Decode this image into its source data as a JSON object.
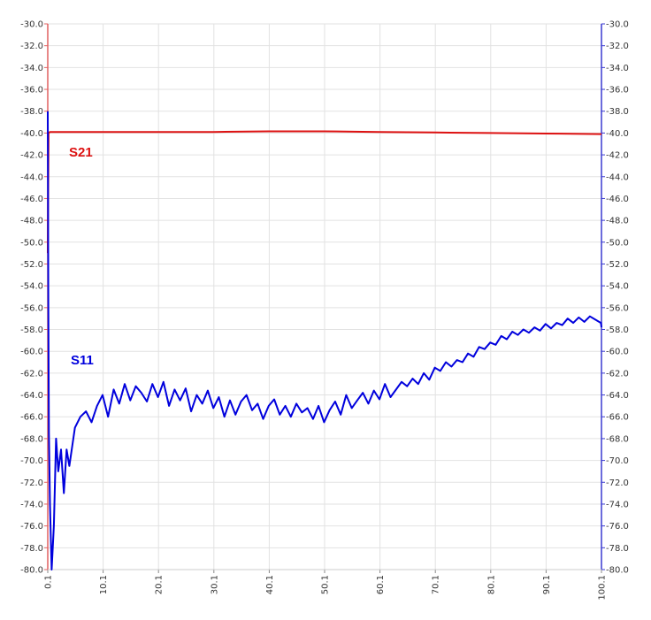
{
  "chart_data": {
    "type": "line",
    "title": "",
    "xlabel": "",
    "ylabel_left": "",
    "ylabel_right": "",
    "xlim": [
      0.1,
      100.1
    ],
    "ylim": [
      -80.0,
      -30.0
    ],
    "x_ticks": [
      "0.1",
      "10.1",
      "20.1",
      "30.1",
      "40.1",
      "50.1",
      "60.1",
      "70.1",
      "80.1",
      "90.1",
      "100.1"
    ],
    "y_ticks": [
      "-30.0",
      "-32.0",
      "-34.0",
      "-36.0",
      "-38.0",
      "-40.0",
      "-42.0",
      "-44.0",
      "-46.0",
      "-48.0",
      "-50.0",
      "-52.0",
      "-54.0",
      "-56.0",
      "-58.0",
      "-60.0",
      "-62.0",
      "-64.0",
      "-66.0",
      "-68.0",
      "-70.0",
      "-72.0",
      "-74.0",
      "-76.0",
      "-78.0",
      "-80.0"
    ],
    "grid": true,
    "left_axis_color": "#e06060",
    "right_axis_color": "#3a3ad0",
    "series": [
      {
        "name": "S21",
        "color": "#dd1111",
        "x": [
          0.1,
          0.25,
          0.5,
          1,
          5,
          10,
          20,
          30,
          40,
          50,
          60,
          70,
          80,
          90,
          100.1
        ],
        "y": [
          -51.0,
          -40.0,
          -39.9,
          -39.9,
          -39.9,
          -39.9,
          -39.9,
          -39.9,
          -39.85,
          -39.85,
          -39.9,
          -39.95,
          -40.0,
          -40.05,
          -40.1
        ]
      },
      {
        "name": "S11",
        "color": "#0000dd",
        "x": [
          0.1,
          0.2,
          0.3,
          0.5,
          0.8,
          1.2,
          1.6,
          2.0,
          2.5,
          3.0,
          3.5,
          4.0,
          5,
          6,
          7,
          8,
          9,
          10,
          11,
          12,
          13,
          14,
          15,
          16,
          17,
          18,
          19,
          20,
          21,
          22,
          23,
          24,
          25,
          26,
          27,
          28,
          29,
          30,
          31,
          32,
          33,
          34,
          35,
          36,
          37,
          38,
          39,
          40,
          41,
          42,
          43,
          44,
          45,
          46,
          47,
          48,
          49,
          50,
          51,
          52,
          53,
          54,
          55,
          56,
          57,
          58,
          59,
          60,
          61,
          62,
          63,
          64,
          65,
          66,
          67,
          68,
          69,
          70,
          71,
          72,
          73,
          74,
          75,
          76,
          77,
          78,
          79,
          80,
          81,
          82,
          83,
          84,
          85,
          86,
          87,
          88,
          89,
          90,
          91,
          92,
          93,
          94,
          95,
          96,
          97,
          98,
          99,
          100,
          100.1
        ],
        "y": [
          -38.0,
          -55.0,
          -67.5,
          -74.0,
          -80.0,
          -76.0,
          -68.0,
          -71.0,
          -69.0,
          -73.0,
          -69.0,
          -70.5,
          -67.0,
          -66.0,
          -65.5,
          -66.5,
          -65.0,
          -64.0,
          -66.0,
          -63.5,
          -64.8,
          -63.0,
          -64.5,
          -63.2,
          -63.8,
          -64.6,
          -63.0,
          -64.2,
          -62.8,
          -65.0,
          -63.5,
          -64.5,
          -63.4,
          -65.5,
          -64.0,
          -64.8,
          -63.6,
          -65.2,
          -64.2,
          -66.0,
          -64.5,
          -65.8,
          -64.6,
          -64.0,
          -65.4,
          -64.8,
          -66.2,
          -65.0,
          -64.4,
          -65.8,
          -65.0,
          -66.0,
          -64.8,
          -65.6,
          -65.2,
          -66.2,
          -65.0,
          -66.5,
          -65.4,
          -64.6,
          -65.8,
          -64.0,
          -65.2,
          -64.5,
          -63.8,
          -64.8,
          -63.6,
          -64.4,
          -63.0,
          -64.2,
          -63.5,
          -62.8,
          -63.2,
          -62.5,
          -63.0,
          -62.0,
          -62.6,
          -61.5,
          -61.8,
          -61.0,
          -61.4,
          -60.8,
          -61.0,
          -60.2,
          -60.5,
          -59.6,
          -59.8,
          -59.2,
          -59.4,
          -58.6,
          -58.9,
          -58.2,
          -58.5,
          -58.0,
          -58.3,
          -57.8,
          -58.1,
          -57.5,
          -57.9,
          -57.4,
          -57.6,
          -57.0,
          -57.4,
          -56.9,
          -57.3,
          -56.8,
          -57.1,
          -57.4,
          -57.8
        ]
      }
    ],
    "annotations": [
      {
        "text": "S21",
        "series": "S21"
      },
      {
        "text": "S11",
        "series": "S11"
      }
    ]
  }
}
